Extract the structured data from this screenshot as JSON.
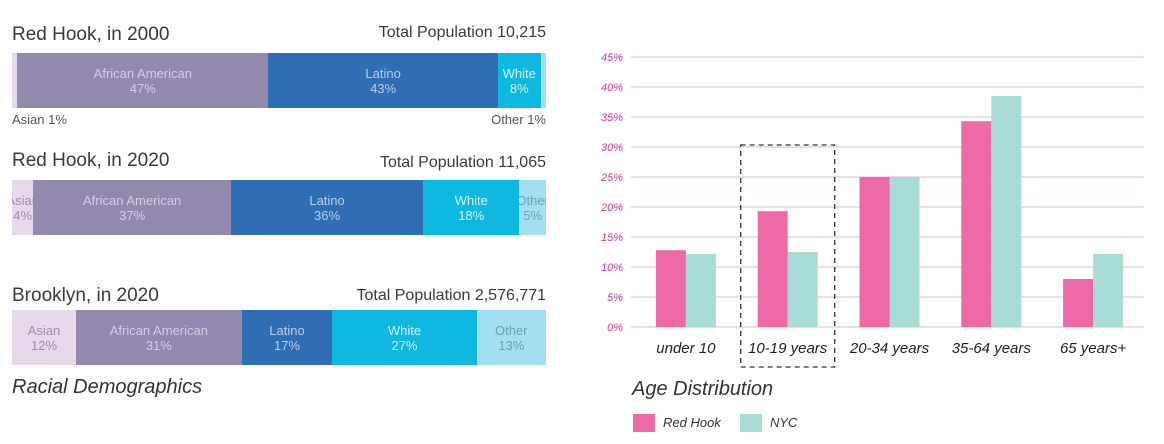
{
  "racial": {
    "caption": "Racial Demographics",
    "bars": [
      {
        "title": "Red Hook, in 2000",
        "total": "Total Population 10,215",
        "segments": [
          {
            "name": "",
            "pct": 1,
            "label_pct": "",
            "color": "#e6d9ec",
            "text_color": "#ffffff"
          },
          {
            "name": "African American",
            "pct": 47,
            "label_pct": "47%",
            "color": "#9388ad",
            "text_color": "#d4cde4"
          },
          {
            "name": "Latino",
            "pct": 43,
            "label_pct": "43%",
            "color": "#2f6db4",
            "text_color": "#b9cde9"
          },
          {
            "name": "White",
            "pct": 8,
            "label_pct": "8%",
            "color": "#0fb8e0",
            "text_color": "#d5f2fb"
          },
          {
            "name": "",
            "pct": 1,
            "label_pct": "",
            "color": "#a3dff2",
            "text_color": "#ffffff"
          }
        ],
        "below_left": "Asian 1%",
        "below_right": "Other 1%"
      },
      {
        "title": "Red Hook, in 2020",
        "total": "Total Population 11,065",
        "segments": [
          {
            "name": "Asian",
            "pct": 4,
            "label_pct": "4%",
            "color": "#e6d9ec",
            "text_color": "#9a8fae"
          },
          {
            "name": "African American",
            "pct": 37,
            "label_pct": "37%",
            "color": "#9388ad",
            "text_color": "#d4cde4"
          },
          {
            "name": "Latino",
            "pct": 36,
            "label_pct": "36%",
            "color": "#2f6db4",
            "text_color": "#b9cde9"
          },
          {
            "name": "White",
            "pct": 18,
            "label_pct": "18%",
            "color": "#0fb8e0",
            "text_color": "#d5f2fb"
          },
          {
            "name": "Other",
            "pct": 5,
            "label_pct": "5%",
            "color": "#a3dff2",
            "text_color": "#6e9fb3"
          }
        ]
      },
      {
        "title": "Brooklyn, in 2020",
        "total": "Total Population 2,576,771",
        "segments": [
          {
            "name": "Asian",
            "pct": 12,
            "label_pct": "12%",
            "color": "#e6d9ec",
            "text_color": "#9a8fae"
          },
          {
            "name": "African American",
            "pct": 31,
            "label_pct": "31%",
            "color": "#9388ad",
            "text_color": "#d4cde4"
          },
          {
            "name": "Latino",
            "pct": 17,
            "label_pct": "17%",
            "color": "#2f6db4",
            "text_color": "#b9cde9"
          },
          {
            "name": "White",
            "pct": 27,
            "label_pct": "27%",
            "color": "#0fb8e0",
            "text_color": "#d5f2fb"
          },
          {
            "name": "Other",
            "pct": 13,
            "label_pct": "13%",
            "color": "#a3dff2",
            "text_color": "#6e9fb3"
          }
        ]
      }
    ]
  },
  "chart_data": {
    "type": "bar",
    "title": "Age Distribution",
    "categories": [
      "under 10",
      "10-19 years",
      "20-34 years",
      "35-64 years",
      "65 years+"
    ],
    "series": [
      {
        "name": "Red Hook",
        "color": "#ee6aa7",
        "values": [
          12.8,
          19.3,
          25.0,
          34.3,
          8.0
        ]
      },
      {
        "name": "NYC",
        "color": "#a9dcd4",
        "values": [
          12.2,
          12.5,
          25.0,
          38.5,
          12.2
        ]
      }
    ],
    "ylim": [
      0,
      45
    ],
    "yticks": [
      "0%",
      "5%",
      "10%",
      "15%",
      "20%",
      "25%",
      "30%",
      "35%",
      "40%",
      "45%"
    ],
    "grid": true,
    "grid_color": "#e3b6e3",
    "tick_color": "#d6389a",
    "highlighted_category": "10-19 years",
    "legend_position": "bottom-left"
  }
}
